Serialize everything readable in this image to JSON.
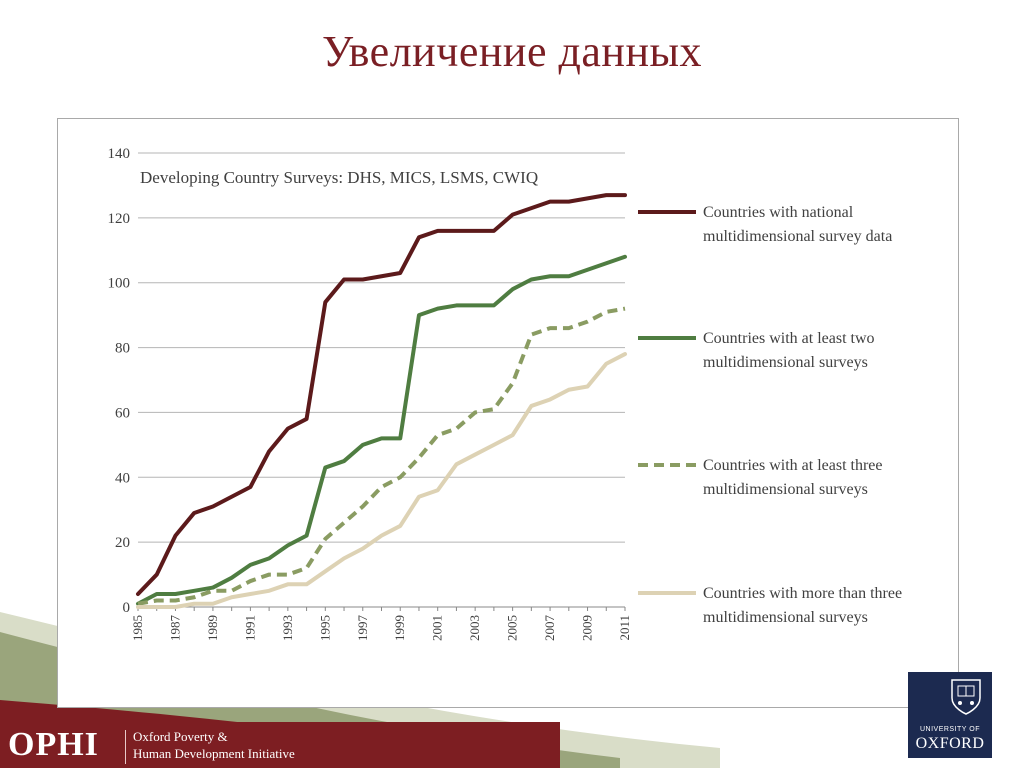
{
  "slide": {
    "title": "Увеличение данных"
  },
  "footer": {
    "brand": "OPHI",
    "brand_line1": "Oxford Poverty &",
    "brand_line2": "Human Development Initiative",
    "oxford_small": "UNIVERSITY OF",
    "oxford_big": "OXFORD"
  },
  "colors": {
    "title": "#7a1f24",
    "footer_maroon": "#7d1e22",
    "oxford_blue": "#1c2a50"
  },
  "chart_data": {
    "type": "line",
    "title": "Developing Country Surveys: DHS, MICS, LSMS, CWIQ",
    "x": [
      1985,
      1986,
      1987,
      1988,
      1989,
      1990,
      1991,
      1992,
      1993,
      1994,
      1995,
      1996,
      1997,
      1998,
      1999,
      2000,
      2001,
      2002,
      2003,
      2004,
      2005,
      2006,
      2007,
      2008,
      2009,
      2010,
      2011
    ],
    "x_tick_labels": [
      "1985",
      "1987",
      "1989",
      "1991",
      "1993",
      "1995",
      "1997",
      "1999",
      "2001",
      "2003",
      "2005",
      "2007",
      "2009",
      "2011"
    ],
    "ylim": [
      0,
      140
    ],
    "y_ticks": [
      0,
      20,
      40,
      60,
      80,
      100,
      120,
      140
    ],
    "grid": "horizontal",
    "legend_position": "right",
    "series": [
      {
        "name": "Countries  with national multidimensional survey data",
        "legend_lines": [
          "Countries  with national",
          "multidimensional survey data"
        ],
        "color": "#5c1a1b",
        "style": "solid",
        "values": [
          4,
          10,
          22,
          29,
          31,
          34,
          37,
          48,
          55,
          58,
          94,
          101,
          101,
          102,
          103,
          114,
          116,
          116,
          116,
          116,
          121,
          123,
          125,
          125,
          126,
          127,
          127
        ]
      },
      {
        "name": "Countries with at least two multidimensional surveys",
        "legend_lines": [
          "Countries with at least two",
          "multidimensional surveys"
        ],
        "color": "#4f7d41",
        "style": "solid",
        "values": [
          1,
          4,
          4,
          5,
          6,
          9,
          13,
          15,
          19,
          22,
          43,
          45,
          50,
          52,
          52,
          90,
          92,
          93,
          93,
          93,
          98,
          101,
          102,
          102,
          104,
          106,
          108
        ]
      },
      {
        "name": "Countries with at least three multidimensional surveys",
        "legend_lines": [
          "Countries with at least three",
          "multidimensional surveys"
        ],
        "color": "#8a9c62",
        "style": "dashed",
        "values": [
          1,
          2,
          2,
          3,
          5,
          5,
          8,
          10,
          10,
          12,
          21,
          26,
          31,
          37,
          40,
          46,
          53,
          55,
          60,
          61,
          69,
          84,
          86,
          86,
          88,
          91,
          92
        ]
      },
      {
        "name": "Countries with more than three multidimensional surveys",
        "legend_lines": [
          "Countries with more than three",
          "multidimensional surveys"
        ],
        "color": "#ddd2b4",
        "style": "solid",
        "values": [
          0,
          0,
          0,
          1,
          1,
          3,
          4,
          5,
          7,
          7,
          11,
          15,
          18,
          22,
          25,
          34,
          36,
          44,
          47,
          50,
          53,
          62,
          64,
          67,
          68,
          75,
          78
        ]
      }
    ]
  }
}
